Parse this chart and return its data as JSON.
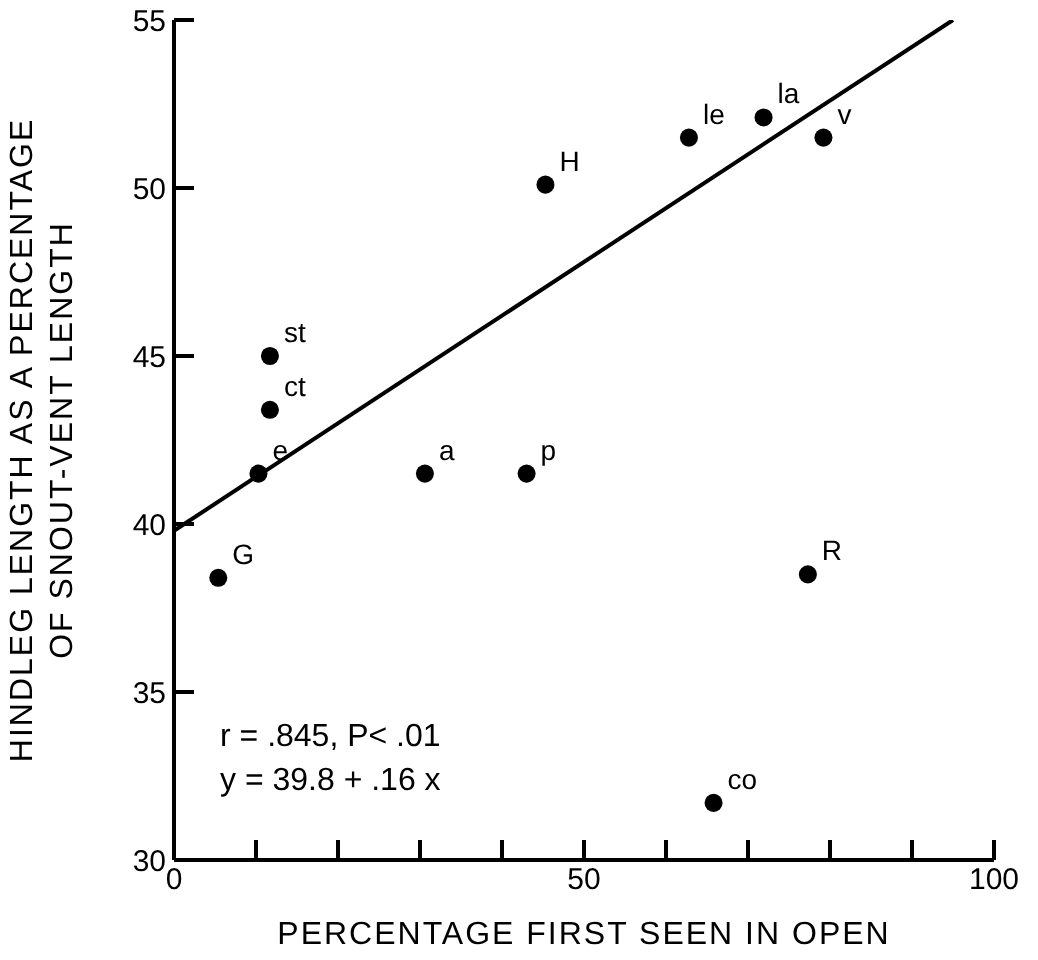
{
  "chart_data": {
    "type": "scatter",
    "xlabel": "PERCENTAGE  FIRST SEEN IN OPEN",
    "ylabel": "HINDLEG LENGTH AS A PERCENTAGE\nOF SNOUT-VENT LENGTH",
    "xlim": [
      0,
      100
    ],
    "ylim": [
      30,
      55
    ],
    "xticks": [
      0,
      {
        "value": 10,
        "label": null
      },
      {
        "value": 20,
        "label": null
      },
      {
        "value": 30,
        "label": null
      },
      {
        "value": 40,
        "label": null
      },
      50,
      {
        "value": 60,
        "label": null
      },
      {
        "value": 70,
        "label": null
      },
      {
        "value": 80,
        "label": null
      },
      {
        "value": 90,
        "label": null
      },
      100
    ],
    "yticks": [
      30,
      35,
      40,
      45,
      50,
      55
    ],
    "series": [
      {
        "marker": "circle",
        "color": "#000000",
        "x": [
          5.4,
          10.3,
          11.7,
          11.7,
          30.6,
          43.0,
          45.3,
          62.8,
          71.9,
          79.2,
          77.3,
          65.8
        ],
        "values": [
          38.4,
          41.5,
          43.4,
          45.0,
          41.5,
          41.5,
          50.1,
          51.5,
          52.1,
          51.5,
          38.5,
          31.7
        ]
      },
      {
        "type": "line",
        "marker": "none",
        "line_style": "solid",
        "color": "#000000",
        "x": [
          0,
          95
        ],
        "values": [
          39.8,
          55.0
        ]
      }
    ],
    "annotations": [
      {
        "text": "G",
        "x": 5.4,
        "y": 38.4
      },
      {
        "text": "e",
        "x": 10.3,
        "y": 41.5
      },
      {
        "text": "ct",
        "x": 11.7,
        "y": 43.4
      },
      {
        "text": "st",
        "x": 11.7,
        "y": 45.0
      },
      {
        "text": "a",
        "x": 30.6,
        "y": 41.5
      },
      {
        "text": "p",
        "x": 43.0,
        "y": 41.5
      },
      {
        "text": "H",
        "x": 45.3,
        "y": 50.1
      },
      {
        "text": "le",
        "x": 62.8,
        "y": 51.5
      },
      {
        "text": "la",
        "x": 71.9,
        "y": 52.1
      },
      {
        "text": "v",
        "x": 79.2,
        "y": 51.5
      },
      {
        "text": "R",
        "x": 77.3,
        "y": 38.5
      },
      {
        "text": "co",
        "x": 65.8,
        "y": 31.7
      },
      "r = .845,  P< .01",
      "y = 39.8 + .16 x"
    ]
  }
}
